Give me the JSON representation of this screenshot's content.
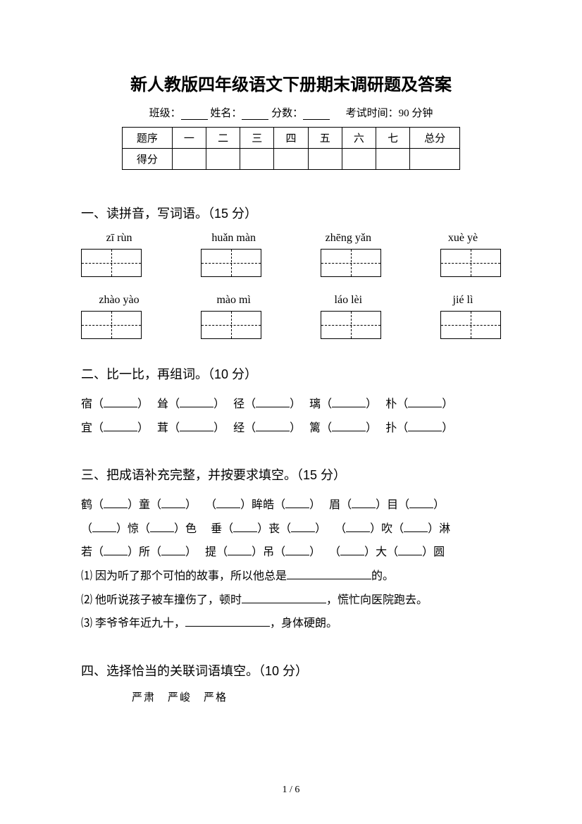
{
  "title": "新人教版四年级语文下册期末调研题及答案",
  "info": {
    "class_label": "班级：",
    "name_label": "姓名：",
    "score_label": "分数：",
    "exam_time": "考试时间：90 分钟"
  },
  "score_table": {
    "row1": [
      "题序",
      "一",
      "二",
      "三",
      "四",
      "五",
      "六",
      "七",
      "总分"
    ],
    "row2_label": "得分"
  },
  "sections": {
    "s1": {
      "title": "一、读拼音，写词语。（15 分）",
      "pinyin_row1": [
        "zī  rùn",
        "huǎn màn",
        "zhēng yǎn",
        "xuè yè"
      ],
      "pinyin_row2": [
        "zhào yào",
        "mào mì",
        "láo lèi",
        "jié lì"
      ]
    },
    "s2": {
      "title": "二、比一比，再组词。（10 分）",
      "line1_chars": [
        "宿",
        "耸",
        "径",
        "璃",
        "朴"
      ],
      "line2_chars": [
        "宜",
        "茸",
        "经",
        "篱",
        "扑"
      ]
    },
    "s3": {
      "title": "三、把成语补充完整，并按要求填空。（15 分）",
      "idioms": [
        [
          "鹤（",
          "）童（",
          "）",
          "（",
          "）眸皓（",
          "）",
          "眉（",
          "）目（",
          "）"
        ],
        [
          "（",
          "）惊（",
          "）色",
          "垂（",
          "）丧（",
          "）",
          "（",
          "）吹（",
          "）淋"
        ],
        [
          "若（",
          "）所（",
          "）",
          "提（",
          "）吊（",
          "）",
          "（",
          "）大（",
          "）圆"
        ]
      ],
      "sent1_a": "⑴ 因为听了那个可怕的故事，所以他总是",
      "sent1_b": "的。",
      "sent2_a": "⑵ 他听说孩子被车撞伤了，顿时",
      "sent2_b": "，慌忙向医院跑去。",
      "sent3_a": "⑶ 李爷爷年近九十，",
      "sent3_b": "，身体硬朗。"
    },
    "s4": {
      "title": "四、选择恰当的关联词语填空。（10 分）",
      "words": "严肃　严峻　严格"
    }
  },
  "page_num": "1 / 6",
  "colors": {
    "text": "#000000",
    "background": "#ffffff"
  }
}
